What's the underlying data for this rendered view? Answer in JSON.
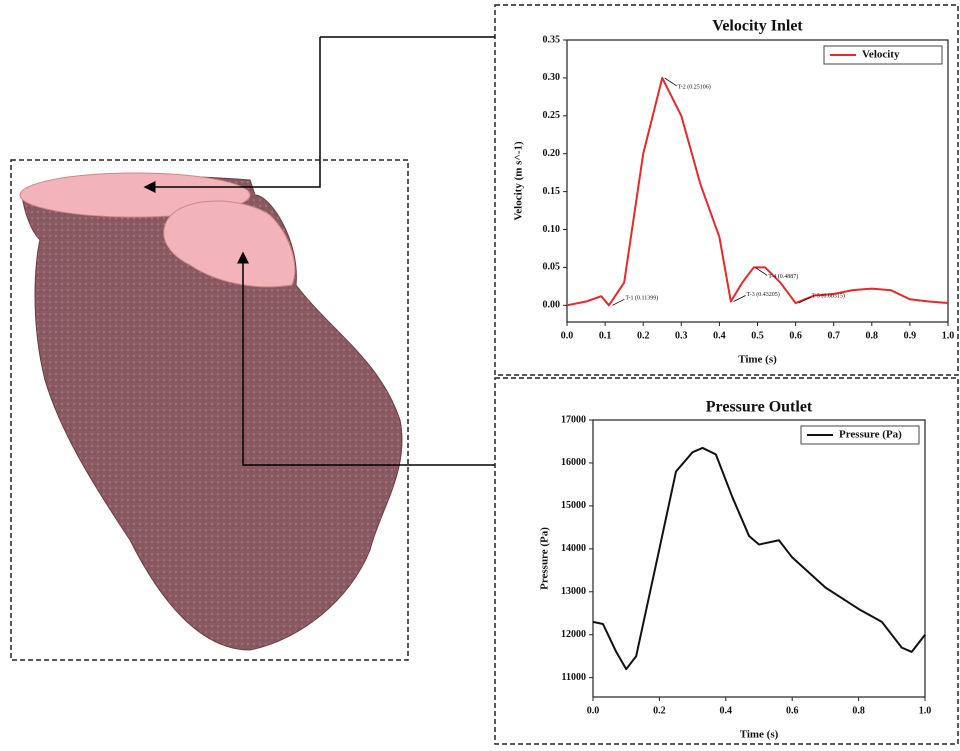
{
  "chart_data": [
    {
      "type": "line",
      "title": "Velocity Inlet",
      "x_label": "Time (s)",
      "y_label": "Velocity (m s^-1)",
      "x": [
        0,
        0.05,
        0.09,
        0.11,
        0.15,
        0.2,
        0.25,
        0.3,
        0.35,
        0.4,
        0.43,
        0.46,
        0.49,
        0.52,
        0.56,
        0.6,
        0.65,
        0.7,
        0.75,
        0.8,
        0.85,
        0.9,
        0.95,
        1.0
      ],
      "series": [
        {
          "name": "Velocity",
          "color": "#e8282a",
          "values": [
            0.0,
            0.005,
            0.012,
            0.0,
            0.03,
            0.2,
            0.3,
            0.25,
            0.16,
            0.09,
            0.005,
            0.03,
            0.05,
            0.05,
            0.03,
            0.003,
            0.013,
            0.015,
            0.02,
            0.022,
            0.02,
            0.008,
            0.005,
            0.003
          ]
        }
      ],
      "xlim": [
        0,
        1
      ],
      "ylim": [
        -0.022,
        0.35
      ],
      "xticks": [
        {
          "value": 0,
          "label": "0.0"
        },
        {
          "value": 0.1,
          "label": "0.1"
        },
        {
          "value": 0.2,
          "label": "0.2"
        },
        {
          "value": 0.3,
          "label": "0.3"
        },
        {
          "value": 0.4,
          "label": "0.4"
        },
        {
          "value": 0.5,
          "label": "0.5"
        },
        {
          "value": 0.6,
          "label": "0.6"
        },
        {
          "value": 0.7,
          "label": "0.7"
        },
        {
          "value": 0.8,
          "label": "0.8"
        },
        {
          "value": 0.9,
          "label": "0.9"
        },
        {
          "value": 1,
          "label": "1.0"
        }
      ],
      "yticks": [
        {
          "value": 0,
          "label": "0.00"
        },
        {
          "value": 0.05,
          "label": "0.05"
        },
        {
          "value": 0.1,
          "label": "0.10"
        },
        {
          "value": 0.15,
          "label": "0.15"
        },
        {
          "value": 0.2,
          "label": "0.20"
        },
        {
          "value": 0.25,
          "label": "0.25"
        },
        {
          "value": 0.3,
          "label": "0.30"
        },
        {
          "value": 0.35,
          "label": "0.35"
        }
      ],
      "annotations": [
        {
          "text": "T-1 (0.11399)",
          "x": 0.11399,
          "y": 0.0
        },
        {
          "text": "T-2 (0.25106)",
          "x": 0.25106,
          "y": 0.3
        },
        {
          "text": "T-3 (0.43205)",
          "x": 0.43205,
          "y": 0.005
        },
        {
          "text": "T-4 (0.4887)",
          "x": 0.4887,
          "y": 0.05
        },
        {
          "text": "T-5 (0.60315)",
          "x": 0.60315,
          "y": 0.003
        }
      ],
      "legend": "upper right",
      "grid": false
    },
    {
      "type": "line",
      "title": "Pressure Outlet",
      "x_label": "Time (s)",
      "y_label": "Pressure (Pa)",
      "x": [
        0,
        0.03,
        0.07,
        0.1,
        0.13,
        0.2,
        0.25,
        0.3,
        0.33,
        0.37,
        0.42,
        0.47,
        0.5,
        0.56,
        0.6,
        0.7,
        0.8,
        0.87,
        0.93,
        0.96,
        1.0
      ],
      "series": [
        {
          "name": "Pressure (Pa)",
          "color": "#111111",
          "values": [
            12300,
            12250,
            11600,
            11200,
            11500,
            14000,
            15800,
            16250,
            16350,
            16200,
            15200,
            14300,
            14100,
            14200,
            13800,
            13100,
            12600,
            12300,
            11700,
            11600,
            12000
          ]
        }
      ],
      "xlim": [
        0,
        1
      ],
      "ylim": [
        10550,
        17000
      ],
      "xticks": [
        {
          "value": 0,
          "label": "0.0"
        },
        {
          "value": 0.2,
          "label": "0.2"
        },
        {
          "value": 0.4,
          "label": "0.4"
        },
        {
          "value": 0.6,
          "label": "0.6"
        },
        {
          "value": 0.8,
          "label": "0.8"
        },
        {
          "value": 1,
          "label": "1.0"
        }
      ],
      "yticks": [
        11000,
        12000,
        13000,
        14000,
        15000,
        16000,
        17000
      ],
      "legend": "upper right",
      "grid": false
    }
  ]
}
